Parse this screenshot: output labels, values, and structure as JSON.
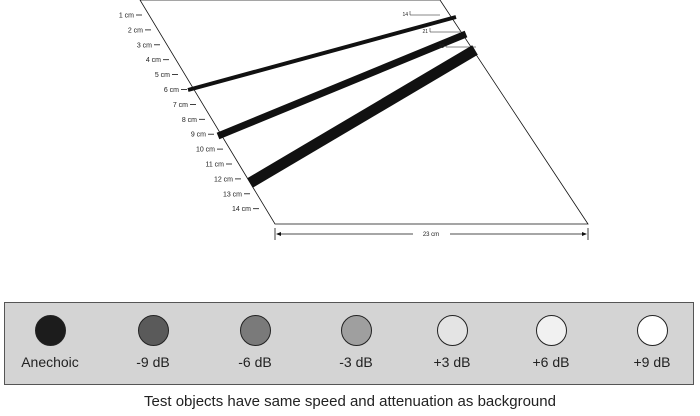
{
  "depth_markers": [
    "1 cm",
    "2 cm",
    "3 cm",
    "4 cm",
    "5 cm",
    "6 cm",
    "7 cm",
    "8 cm",
    "9 cm",
    "10 cm",
    "11 cm",
    "12 cm",
    "13 cm",
    "14 cm"
  ],
  "width_dimension": "23 cm",
  "filaments": [
    {
      "start_depth": "6 cm",
      "width_label": "14",
      "stroke_color": "#111111"
    },
    {
      "start_depth": "9 cm",
      "width_label": "21",
      "stroke_color": "#111111"
    },
    {
      "start_depth": "12 cm",
      "width_label": "28",
      "stroke_color": "#111111"
    }
  ],
  "legend": [
    {
      "label": "Anechoic",
      "color": "#1c1c1c"
    },
    {
      "label": "-9 dB",
      "color": "#5a5a5a"
    },
    {
      "label": "-6 dB",
      "color": "#7a7a7a"
    },
    {
      "label": "-3 dB",
      "color": "#9f9f9f"
    },
    {
      "label": "+3 dB",
      "color": "#e4e4e4"
    },
    {
      "label": "+6 dB",
      "color": "#f1f1f1"
    },
    {
      "label": "+9 dB",
      "color": "#ffffff"
    }
  ],
  "caption": "Test objects have same speed and attenuation as background"
}
